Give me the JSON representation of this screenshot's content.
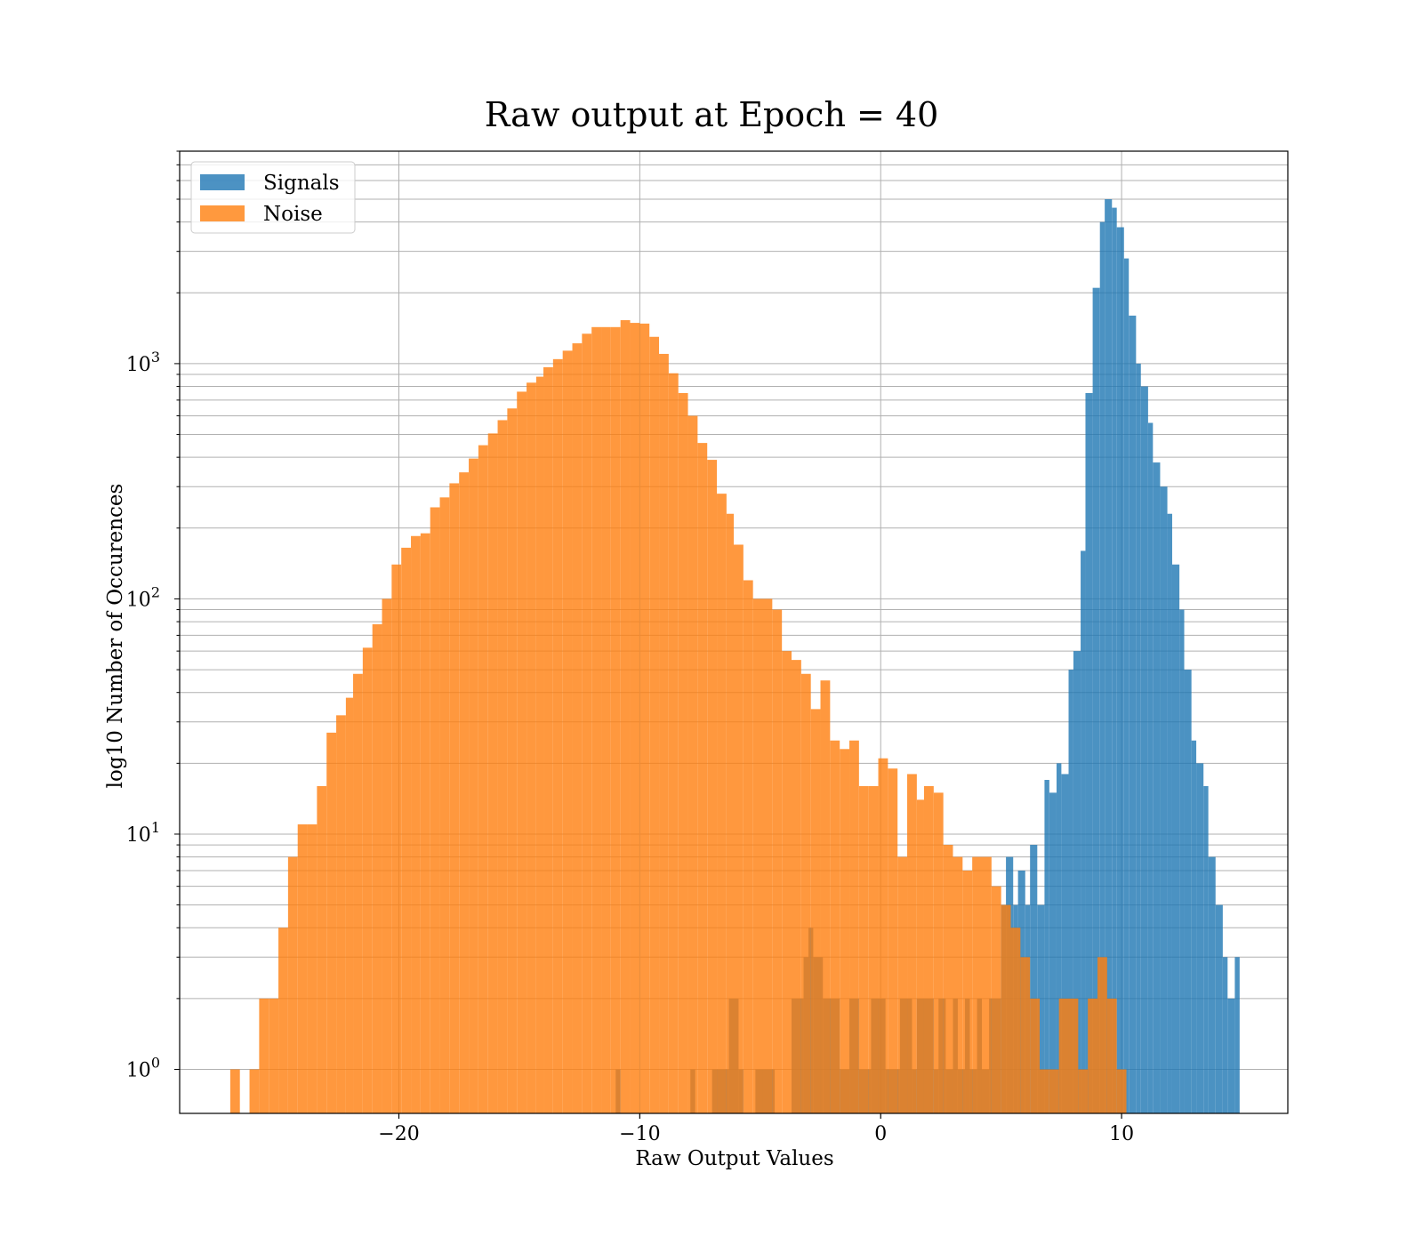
{
  "chart_data": {
    "type": "bar",
    "histogram": true,
    "title": "Raw output at Epoch = 40",
    "xlabel": "Raw Output Values",
    "ylabel": "log10 Number of Occurences",
    "xlim": [
      -29.1,
      16.9
    ],
    "ylim": [
      0.65,
      8000
    ],
    "yscale": "log",
    "grid": "major and minor",
    "legend": "upper-left",
    "x_ticks": [
      {
        "value": -20,
        "label": "−20"
      },
      {
        "value": -10,
        "label": "−10"
      },
      {
        "value": 0,
        "label": "0"
      },
      {
        "value": 10,
        "label": "10"
      }
    ],
    "y_ticks": [
      {
        "value": 1,
        "base": "10",
        "exp": "0"
      },
      {
        "value": 10,
        "base": "10",
        "exp": "1"
      },
      {
        "value": 100,
        "base": "10",
        "exp": "2"
      },
      {
        "value": 1000,
        "base": "10",
        "exp": "3"
      }
    ],
    "series": [
      {
        "name": "Signals",
        "color": "#1f77b4",
        "opacity": 0.8,
        "bin_edges": [
          -11.0,
          -10.8,
          -7.9,
          -7.7,
          -7.0,
          -6.3,
          -5.9,
          -5.7,
          -5.2,
          -4.4,
          -3.7,
          -3.2,
          -3.0,
          -2.8,
          -2.4,
          -1.7,
          -1.3,
          -0.9,
          -0.4,
          0.2,
          0.8,
          1.3,
          1.5,
          2.2,
          2.4,
          2.7,
          3.0,
          3.2,
          3.5,
          3.7,
          4.0,
          4.2,
          4.5,
          5.0,
          5.2,
          5.5,
          5.7,
          6.0,
          6.2,
          6.5,
          6.8,
          7.0,
          7.3,
          7.5,
          7.8,
          8.0,
          8.3,
          8.5,
          8.8,
          9.1,
          9.3,
          9.6,
          9.8,
          10.1,
          10.3,
          10.6,
          10.8,
          11.1,
          11.3,
          11.6,
          11.9,
          12.1,
          12.4,
          12.6,
          12.9,
          13.1,
          13.4,
          13.6,
          13.9,
          14.2,
          14.4,
          14.7,
          14.9
        ],
        "values": [
          1,
          0,
          1,
          0,
          1,
          2,
          1,
          0,
          1,
          0,
          2,
          3,
          4,
          3,
          2,
          1,
          2,
          1,
          2,
          1,
          2,
          1,
          2,
          1,
          2,
          1,
          2,
          1,
          2,
          1,
          2,
          1,
          2,
          5,
          8,
          5,
          7,
          5,
          9,
          5,
          17,
          15,
          20,
          18,
          50,
          60,
          160,
          750,
          2100,
          4000,
          5000,
          4600,
          3800,
          2800,
          1600,
          1000,
          800,
          560,
          380,
          300,
          230,
          140,
          90,
          50,
          25,
          20,
          16,
          8,
          5,
          3,
          2,
          3
        ]
      },
      {
        "name": "Noise",
        "color": "#ff7f0e",
        "opacity": 0.8,
        "bin_edges": [
          -27.0,
          -26.6,
          -26.2,
          -25.8,
          -25.4,
          -25.0,
          -24.6,
          -24.2,
          -23.8,
          -23.4,
          -23.0,
          -22.6,
          -22.2,
          -21.9,
          -21.5,
          -21.1,
          -20.7,
          -20.3,
          -19.9,
          -19.5,
          -19.1,
          -18.7,
          -18.3,
          -17.9,
          -17.5,
          -17.1,
          -16.7,
          -16.3,
          -15.9,
          -15.5,
          -15.1,
          -14.7,
          -14.3,
          -14.0,
          -13.6,
          -13.2,
          -12.8,
          -12.4,
          -12.0,
          -11.6,
          -11.2,
          -10.8,
          -10.4,
          -10.0,
          -9.6,
          -9.2,
          -8.8,
          -8.4,
          -8.0,
          -7.6,
          -7.2,
          -6.8,
          -6.4,
          -6.1,
          -5.7,
          -5.3,
          -4.9,
          -4.5,
          -4.1,
          -3.7,
          -3.3,
          -2.9,
          -2.5,
          -2.1,
          -1.7,
          -1.3,
          -0.9,
          -0.5,
          -0.1,
          0.3,
          0.7,
          1.1,
          1.5,
          1.8,
          2.2,
          2.6,
          3.0,
          3.4,
          3.8,
          4.2,
          4.6,
          5.0,
          5.4,
          5.8,
          6.2,
          6.6,
          7.0,
          7.4,
          7.8,
          8.2,
          8.6,
          9.0,
          9.4,
          9.8,
          10.2
        ],
        "values": [
          1,
          0,
          1,
          2,
          2,
          4,
          8,
          11,
          11,
          16,
          27,
          32,
          38,
          48,
          62,
          78,
          100,
          140,
          165,
          185,
          190,
          245,
          270,
          310,
          345,
          395,
          450,
          505,
          575,
          645,
          760,
          830,
          880,
          965,
          1045,
          1135,
          1220,
          1340,
          1430,
          1430,
          1430,
          1530,
          1490,
          1480,
          1300,
          1100,
          910,
          750,
          600,
          460,
          390,
          280,
          230,
          170,
          120,
          100,
          100,
          90,
          60,
          55,
          48,
          34,
          45,
          25,
          23,
          25,
          16,
          16,
          21,
          19,
          8,
          18,
          14,
          16,
          15,
          9,
          8,
          7,
          8,
          8,
          6,
          5,
          4,
          3,
          2,
          1,
          1,
          2,
          2,
          1,
          2,
          3,
          2,
          1
        ]
      }
    ]
  }
}
